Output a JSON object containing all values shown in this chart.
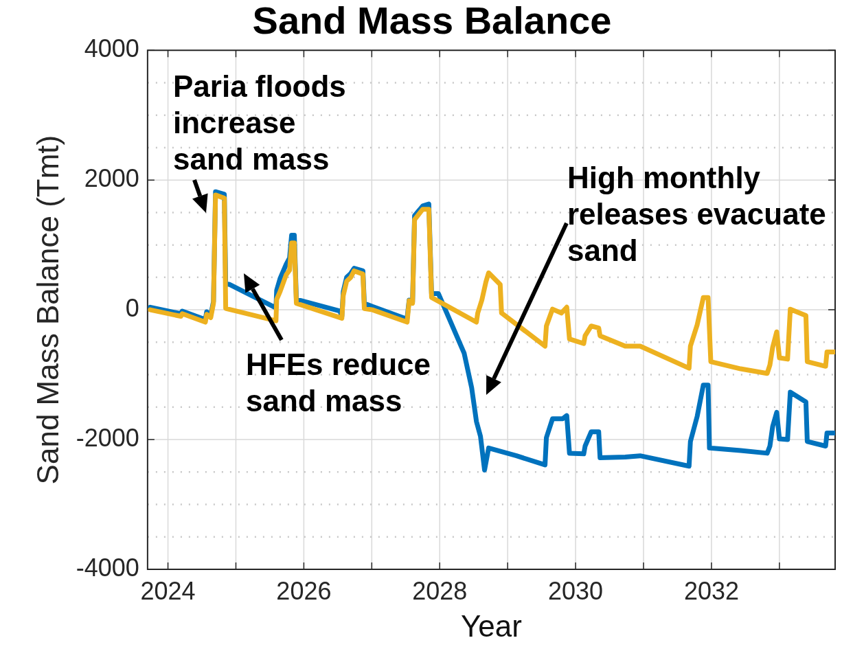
{
  "chart_data": {
    "type": "line",
    "title": "Sand Mass Balance",
    "xlabel": "Year",
    "ylabel": "Sand Mass Balance (Tmt)",
    "xlim": [
      2023.7,
      2033.82
    ],
    "xticks": [
      2024,
      {
        "value": 2025,
        "label": null
      },
      2026,
      {
        "value": 2027,
        "label": null
      },
      2028,
      {
        "value": 2029,
        "label": null
      },
      2030,
      {
        "value": 2031,
        "label": null
      },
      2032,
      {
        "value": 2033,
        "label": null
      }
    ],
    "ylim": [
      -4000,
      4000
    ],
    "yticks": [
      -4000,
      {
        "value": -3500,
        "label": null
      },
      {
        "value": -3000,
        "label": null
      },
      {
        "value": -2500,
        "label": null
      },
      -2000,
      {
        "value": -1500,
        "label": null
      },
      {
        "value": -1000,
        "label": null
      },
      {
        "value": -500,
        "label": null
      },
      0,
      {
        "value": 500,
        "label": null
      },
      {
        "value": 1000,
        "label": null
      },
      {
        "value": 1500,
        "label": null
      },
      2000,
      {
        "value": 2500,
        "label": null
      },
      {
        "value": 3000,
        "label": null
      },
      {
        "value": 3500,
        "label": null
      },
      4000
    ],
    "grid": true,
    "legend": false,
    "marker": "none",
    "line_style": "solid",
    "series": [
      {
        "color": "#edb120",
        "x": [
          2023.74,
          2024.19,
          2024.21,
          2024.55,
          2024.57,
          2024.63,
          2024.67,
          2024.7,
          2024.83,
          2024.85,
          2025.59,
          2025.6,
          2025.65,
          2025.74,
          2025.79,
          2025.82,
          2025.86,
          2025.89,
          2026.56,
          2026.58,
          2026.63,
          2026.69,
          2026.74,
          2026.87,
          2026.89,
          2027.01,
          2027.52,
          2027.55,
          2027.6,
          2027.63,
          2027.75,
          2027.84,
          2027.88,
          2028.54,
          2028.56,
          2028.62,
          2028.68,
          2028.72,
          2028.89,
          2028.91,
          2029.55,
          2029.57,
          2029.66,
          2029.79,
          2029.87,
          2029.91,
          2030.12,
          2030.14,
          2030.23,
          2030.34,
          2030.36,
          2030.73,
          2030.95,
          2031.67,
          2031.69,
          2031.79,
          2031.88,
          2031.95,
          2031.99,
          2032.43,
          2032.82,
          2032.86,
          2032.9,
          2032.96,
          2033.0,
          2033.12,
          2033.16,
          2033.39,
          2033.41,
          2033.68,
          2033.7,
          2033.82
        ],
        "values": [
          0,
          -100,
          -60,
          -190,
          -70,
          -120,
          100,
          1770,
          1720,
          20,
          -170,
          160,
          280,
          540,
          610,
          1030,
          1030,
          100,
          -130,
          220,
          440,
          500,
          600,
          550,
          20,
          0,
          -190,
          140,
          100,
          1390,
          1550,
          1550,
          190,
          -190,
          -50,
          150,
          430,
          570,
          390,
          -50,
          -560,
          -250,
          10,
          -50,
          40,
          -450,
          -520,
          -400,
          -250,
          -280,
          -400,
          -560,
          -560,
          -900,
          -560,
          -230,
          190,
          190,
          -800,
          -910,
          -980,
          -850,
          -580,
          -340,
          -740,
          -760,
          10,
          -90,
          -800,
          -870,
          -650,
          -650
        ]
      },
      {
        "color": "#0072bd",
        "x": [
          2023.74,
          2024.19,
          2024.21,
          2024.55,
          2024.57,
          2024.63,
          2024.67,
          2024.7,
          2024.83,
          2024.85,
          2024.91,
          2025.59,
          2025.6,
          2025.65,
          2025.74,
          2025.79,
          2025.82,
          2025.86,
          2025.89,
          2026.53,
          2026.56,
          2026.58,
          2026.63,
          2026.69,
          2026.74,
          2026.87,
          2026.89,
          2027.01,
          2027.48,
          2027.52,
          2027.55,
          2027.6,
          2027.63,
          2027.75,
          2027.84,
          2027.88,
          2027.98,
          2028.36,
          2028.47,
          2028.54,
          2028.6,
          2028.66,
          2028.72,
          2029.13,
          2029.55,
          2029.57,
          2029.66,
          2029.81,
          2029.87,
          2029.91,
          2030.12,
          2030.14,
          2030.23,
          2030.34,
          2030.36,
          2030.73,
          2030.95,
          2031.67,
          2031.69,
          2031.79,
          2031.88,
          2031.95,
          2031.97,
          2032.43,
          2032.82,
          2032.86,
          2032.9,
          2032.96,
          2033.0,
          2033.12,
          2033.16,
          2033.39,
          2033.41,
          2033.68,
          2033.7,
          2033.82
        ],
        "values": [
          40,
          -60,
          -20,
          -150,
          -30,
          -80,
          130,
          1820,
          1780,
          400,
          390,
          30,
          300,
          480,
          700,
          800,
          1150,
          1150,
          160,
          -20,
          -100,
          280,
          500,
          560,
          640,
          600,
          100,
          50,
          -130,
          -130,
          150,
          120,
          1450,
          1600,
          1630,
          250,
          250,
          -670,
          -1200,
          -1720,
          -1950,
          -2470,
          -2130,
          -2250,
          -2390,
          -1970,
          -1680,
          -1680,
          -1630,
          -2210,
          -2220,
          -2100,
          -1880,
          -1880,
          -2280,
          -2270,
          -2250,
          -2410,
          -2030,
          -1640,
          -1160,
          -1160,
          -2130,
          -2170,
          -2210,
          -2100,
          -1800,
          -1580,
          -1990,
          -2000,
          -1270,
          -1420,
          -2030,
          -2100,
          -1900,
          -1900
        ]
      }
    ],
    "annotations": [
      "Paria floods increase sand mass",
      "HFEs reduce sand mass",
      "High monthly releases evacuate sand"
    ]
  }
}
